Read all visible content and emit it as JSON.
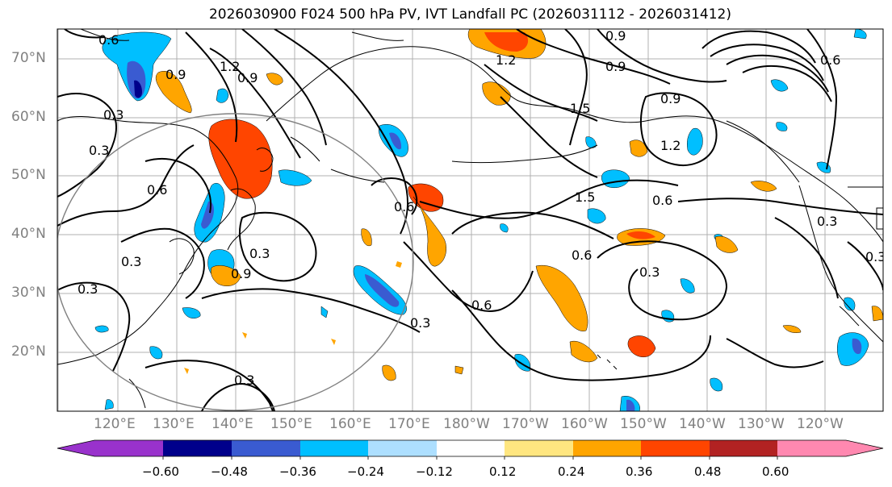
{
  "title": "2026030900 F024 500 hPa PV, IVT Landfall PC (2026031112 - 2026031412)",
  "lat_labels": [
    "70°N",
    "60°N",
    "50°N",
    "40°N",
    "30°N",
    "20°N"
  ],
  "lon_labels": [
    "120°E",
    "130°E",
    "140°E",
    "150°E",
    "160°E",
    "170°E",
    "180°W",
    "170°W",
    "160°W",
    "150°W",
    "140°W",
    "130°W",
    "120°W"
  ],
  "contour_labels": [
    "0.6",
    "1.2",
    "0.9",
    "0.3",
    "0.3",
    "0.6",
    "0.9",
    "0.3",
    "0.3",
    "0.9",
    "1.2",
    "0.9",
    "1.5",
    "0.9",
    "0.9",
    "1.2",
    "0.6",
    "1.5",
    "0.6",
    "0.6",
    "0.3",
    "0.6",
    "0.3",
    "0.6",
    "0.3",
    "0.3",
    "0.3",
    "0.3"
  ],
  "colorbar": {
    "ticks": [
      "−0.60",
      "−0.48",
      "−0.36",
      "−0.24",
      "−0.12",
      "0.12",
      "0.24",
      "0.36",
      "0.48",
      "0.60"
    ],
    "colors": [
      "#9932CC",
      "#00008B",
      "#3A5BD1",
      "#00BFFF",
      "#ADDFFF",
      "#FFFFFF",
      "#FFE680",
      "#FFA500",
      "#FF4500",
      "#B22222",
      "#FF88B0"
    ]
  },
  "colors": {
    "neg_light": "#ADDFFF",
    "neg_mid": "#00BFFF",
    "neg_strong": "#3A5BD1",
    "neg_deep": "#00008B",
    "pos_light": "#FFE680",
    "pos_mid": "#FFA500",
    "pos_strong": "#FF4500",
    "pos_deep": "#B22222"
  }
}
